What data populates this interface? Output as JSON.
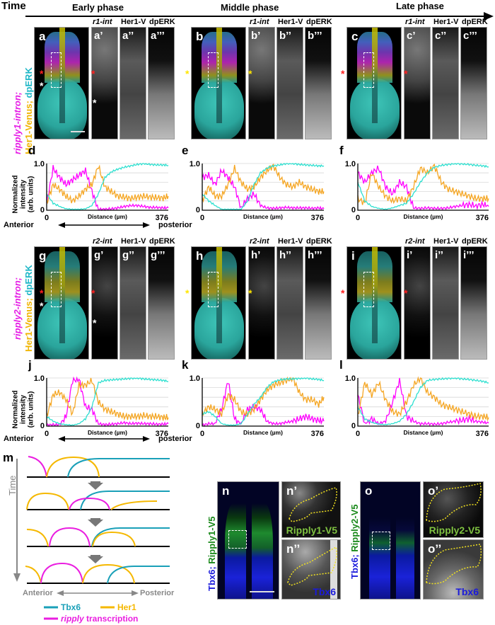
{
  "header": {
    "time_label": "Time",
    "phases": [
      "Early phase",
      "Middle phase",
      "Late phase"
    ]
  },
  "row1": {
    "side_label": {
      "part1": "ripply1-intron;",
      "part2": "Her1-Venus;",
      "part3": "dpERK"
    },
    "channel_labels": [
      "r1-int",
      "Her1-V",
      "dpERK"
    ],
    "groups": [
      {
        "main": "a",
        "subs": [
          "a’",
          "a’’",
          "a’’’"
        ],
        "star_color": "red"
      },
      {
        "main": "b",
        "subs": [
          "b’",
          "b’’",
          "b’’’"
        ],
        "star_color": "yellow"
      },
      {
        "main": "c",
        "subs": [
          "c’",
          "c’’",
          "c’’’"
        ],
        "star_color": "red"
      }
    ]
  },
  "row2": {
    "side_label": {
      "part1": "ripply2-intron;",
      "part2": "Her1-Venus;",
      "part3": "dpERK"
    },
    "channel_labels": [
      "r2-int",
      "Her1-V",
      "dpERK"
    ],
    "groups": [
      {
        "main": "g",
        "subs": [
          "g’",
          "g’’",
          "g’’’"
        ],
        "star_color": "red"
      },
      {
        "main": "h",
        "subs": [
          "h’",
          "h’’",
          "h’’’"
        ],
        "star_color": "yellow"
      },
      {
        "main": "i",
        "subs": [
          "i’",
          "i’’",
          "i’’’"
        ],
        "star_color": "red"
      }
    ]
  },
  "plots": {
    "ylabel_lines": [
      "Normalized",
      "intensity",
      "(arb. units)"
    ],
    "xlabel": "Distance (µm)",
    "anterior": "Anterior",
    "posterior": "posterior",
    "y_top": "1.0",
    "y_bottom": "0",
    "x_start": "0",
    "x_end": "376"
  },
  "chart_data": [
    {
      "panel": "d",
      "type": "line",
      "xlabel": "Distance (µm)",
      "ylabel": "Normalized intensity (arb. units)",
      "xlim": [
        0,
        376
      ],
      "ylim": [
        0,
        1.0
      ],
      "grid": true,
      "x": [
        0,
        20,
        40,
        60,
        80,
        100,
        120,
        140,
        160,
        180,
        200,
        220,
        240,
        260,
        280,
        300,
        320,
        340,
        360,
        376
      ],
      "series": [
        {
          "name": "ripply1-int",
          "color": "#ff00ff",
          "values": [
            0.15,
            0.9,
            0.7,
            0.55,
            0.65,
            0.75,
            0.85,
            0.4,
            0.02,
            0.02,
            0.03,
            0.05,
            0.08,
            0.1,
            0.1,
            0.08,
            0.06,
            0.06,
            0.05,
            0.05
          ]
        },
        {
          "name": "Her1-Venus",
          "color": "#f5a623",
          "values": [
            0.15,
            0.55,
            0.45,
            0.3,
            0.2,
            0.3,
            0.45,
            0.55,
            0.95,
            0.5,
            0.4,
            0.3,
            0.28,
            0.25,
            0.28,
            0.3,
            0.28,
            0.27,
            0.26,
            0.3
          ]
        },
        {
          "name": "dpERK",
          "color": "#2ee0d0",
          "values": [
            0.35,
            0.15,
            0.08,
            0.03,
            0.02,
            0.02,
            0.03,
            0.1,
            0.35,
            0.7,
            0.82,
            0.88,
            0.92,
            0.95,
            0.98,
            1.0,
            0.98,
            0.97,
            0.97,
            0.96
          ]
        }
      ]
    },
    {
      "panel": "e",
      "type": "line",
      "xlabel": "Distance (µm)",
      "xlim": [
        0,
        376
      ],
      "ylim": [
        0,
        1.0
      ],
      "grid": true,
      "x": [
        0,
        20,
        40,
        60,
        80,
        100,
        120,
        140,
        160,
        180,
        200,
        220,
        240,
        260,
        280,
        300,
        320,
        340,
        360,
        376
      ],
      "series": [
        {
          "name": "ripply1-int",
          "color": "#ff00ff",
          "values": [
            0.7,
            0.75,
            0.55,
            0.85,
            0.7,
            0.5,
            0.05,
            0.25,
            0.35,
            0.1,
            0.05,
            0.04,
            0.05,
            0.06,
            0.05,
            0.05,
            0.05,
            0.04,
            0.05,
            0.03
          ]
        },
        {
          "name": "Her1-Venus",
          "color": "#f5a623",
          "values": [
            0.2,
            0.5,
            0.3,
            0.3,
            0.55,
            0.9,
            0.6,
            0.45,
            0.5,
            0.7,
            0.85,
            0.95,
            0.7,
            0.55,
            0.5,
            0.6,
            0.5,
            0.45,
            0.4,
            0.4
          ]
        },
        {
          "name": "dpERK",
          "color": "#2ee0d0",
          "values": [
            0.35,
            0.2,
            0.1,
            0.02,
            0.02,
            0.02,
            0.02,
            0.2,
            0.55,
            0.8,
            0.9,
            0.95,
            0.97,
            1.0,
            1.0,
            0.98,
            0.97,
            0.96,
            0.95,
            0.95
          ]
        }
      ]
    },
    {
      "panel": "f",
      "type": "line",
      "xlabel": "Distance (µm)",
      "xlim": [
        0,
        376
      ],
      "ylim": [
        0,
        1.0
      ],
      "grid": true,
      "x": [
        0,
        20,
        40,
        60,
        80,
        100,
        120,
        140,
        160,
        180,
        200,
        220,
        240,
        260,
        280,
        300,
        320,
        340,
        360,
        376
      ],
      "series": [
        {
          "name": "ripply1-int",
          "color": "#ff00ff",
          "values": [
            0.8,
            0.6,
            0.8,
            0.9,
            0.5,
            0.35,
            0.6,
            0.5,
            0.05,
            0.04,
            0.05,
            0.04,
            0.04,
            0.05,
            0.08,
            0.1,
            0.12,
            0.1,
            0.12,
            0.08
          ]
        },
        {
          "name": "Her1-Venus",
          "color": "#f5a623",
          "values": [
            0.25,
            0.15,
            0.8,
            0.5,
            0.3,
            0.2,
            0.25,
            0.2,
            0.5,
            0.9,
            0.8,
            0.95,
            0.6,
            0.45,
            0.4,
            0.35,
            0.3,
            0.25,
            0.25,
            0.25
          ]
        },
        {
          "name": "dpERK",
          "color": "#2ee0d0",
          "values": [
            0.6,
            0.2,
            0.08,
            0.04,
            0.02,
            0.05,
            0.1,
            0.15,
            0.35,
            0.6,
            0.8,
            0.92,
            0.96,
            0.98,
            1.0,
            0.99,
            0.98,
            0.96,
            0.95,
            0.93
          ]
        }
      ]
    },
    {
      "panel": "j",
      "type": "line",
      "xlabel": "Distance (µm)",
      "ylabel": "Normalized intensity (arb. units)",
      "xlim": [
        0,
        376
      ],
      "ylim": [
        0,
        1.0
      ],
      "grid": true,
      "x": [
        0,
        20,
        40,
        60,
        80,
        100,
        120,
        140,
        160,
        180,
        200,
        220,
        240,
        260,
        280,
        300,
        320,
        340,
        360,
        376
      ],
      "series": [
        {
          "name": "ripply2-int",
          "color": "#ff00ff",
          "values": [
            0.02,
            0.03,
            0.03,
            0.2,
            0.95,
            0.98,
            0.4,
            0.35,
            0.05,
            0.03,
            0.04,
            0.05,
            0.07,
            0.05,
            0.06,
            0.05,
            0.05,
            0.04,
            0.04,
            0.05
          ]
        },
        {
          "name": "Her1-Venus",
          "color": "#f5a623",
          "values": [
            0.2,
            0.65,
            0.7,
            0.55,
            0.25,
            0.85,
            0.85,
            0.95,
            0.5,
            0.35,
            0.3,
            0.25,
            0.2,
            0.2,
            0.2,
            0.22,
            0.2,
            0.2,
            0.18,
            0.18
          ]
        },
        {
          "name": "dpERK",
          "color": "#2ee0d0",
          "values": [
            0.2,
            0.1,
            0.05,
            0.03,
            0.02,
            0.05,
            0.15,
            0.4,
            0.9,
            0.95,
            0.96,
            0.97,
            0.98,
            0.99,
            1.0,
            0.98,
            0.97,
            0.96,
            0.95,
            0.93
          ]
        }
      ]
    },
    {
      "panel": "k",
      "type": "line",
      "xlabel": "Distance (µm)",
      "xlim": [
        0,
        376
      ],
      "ylim": [
        0,
        1.0
      ],
      "grid": true,
      "x": [
        0,
        20,
        40,
        60,
        80,
        100,
        120,
        140,
        160,
        180,
        200,
        220,
        240,
        260,
        280,
        300,
        320,
        340,
        360,
        376
      ],
      "series": [
        {
          "name": "ripply2-int",
          "color": "#ff00ff",
          "values": [
            0.02,
            0.05,
            0.05,
            0.35,
            0.95,
            0.15,
            0.05,
            0.35,
            0.4,
            0.35,
            0.1,
            0.05,
            0.05,
            0.08,
            0.1,
            0.15,
            0.2,
            0.15,
            0.12,
            0.1
          ]
        },
        {
          "name": "Her1-Venus",
          "color": "#f5a623",
          "values": [
            0.25,
            0.4,
            0.35,
            0.25,
            0.65,
            0.55,
            0.3,
            0.25,
            0.35,
            0.55,
            0.75,
            0.85,
            0.9,
            0.95,
            1.0,
            0.7,
            0.55,
            0.55,
            0.45,
            0.6
          ]
        },
        {
          "name": "dpERK",
          "color": "#2ee0d0",
          "values": [
            0.25,
            0.3,
            0.2,
            0.05,
            0.02,
            0.02,
            0.05,
            0.25,
            0.45,
            0.6,
            0.8,
            0.92,
            0.96,
            0.98,
            0.98,
            0.99,
            1.0,
            0.98,
            0.97,
            0.95
          ]
        }
      ]
    },
    {
      "panel": "l",
      "type": "line",
      "xlabel": "Distance (µm)",
      "xlim": [
        0,
        376
      ],
      "ylim": [
        0,
        1.0
      ],
      "grid": true,
      "x": [
        0,
        20,
        40,
        60,
        80,
        100,
        120,
        140,
        160,
        180,
        200,
        220,
        240,
        260,
        280,
        300,
        320,
        340,
        360,
        376
      ],
      "series": [
        {
          "name": "ripply2-int",
          "color": "#ff00ff",
          "values": [
            0.65,
            0.05,
            0.15,
            0.05,
            0.1,
            0.5,
            0.95,
            0.2,
            0.1,
            0.05,
            0.05,
            0.04,
            0.05,
            0.08,
            0.1,
            0.12,
            0.15,
            0.1,
            0.08,
            0.06
          ]
        },
        {
          "name": "Her1-Venus",
          "color": "#f5a623",
          "values": [
            0.2,
            0.9,
            0.65,
            0.9,
            0.55,
            0.3,
            0.25,
            0.5,
            0.85,
            1.0,
            0.7,
            0.6,
            0.45,
            0.4,
            0.35,
            0.3,
            0.25,
            0.2,
            0.2,
            0.18
          ]
        },
        {
          "name": "dpERK",
          "color": "#2ee0d0",
          "values": [
            0.4,
            0.15,
            0.08,
            0.04,
            0.03,
            0.05,
            0.1,
            0.25,
            0.5,
            0.8,
            0.95,
            0.97,
            0.98,
            0.99,
            1.0,
            0.98,
            0.97,
            0.95,
            0.93,
            0.9
          ]
        }
      ]
    }
  ],
  "schematic": {
    "letter": "m",
    "time_label": "Time",
    "anterior": "Anterior",
    "posterior": "Posterior",
    "legend": [
      {
        "name": "Tbx6",
        "color": "#1aa0b8"
      },
      {
        "name": "Her1",
        "color": "#f5b800"
      },
      {
        "name": "ripply",
        "suffix": " transcription",
        "color": "#ea1ee0"
      }
    ]
  },
  "bottom_panels": {
    "n": {
      "letter": "n",
      "side_label_a": "Tbx6;",
      "side_label_b": "Ripply1-V5",
      "sub1": "n’",
      "sub2": "n’’",
      "sub1_label": "Ripply1-V5",
      "sub2_label": "Tbx6"
    },
    "o": {
      "letter": "o",
      "side_label_a": "Tbx6;",
      "side_label_b": "Ripply2-V5",
      "sub1": "o’",
      "sub2": "o’’",
      "sub1_label": "Ripply2-V5",
      "sub2_label": "Tbx6"
    }
  },
  "colors": {
    "ripply": "#ff00ff",
    "her1": "#f5a623",
    "dperk": "#2ee0d0",
    "tbx6_blue": "#1a1adc",
    "v5_green": "#7fc241"
  }
}
